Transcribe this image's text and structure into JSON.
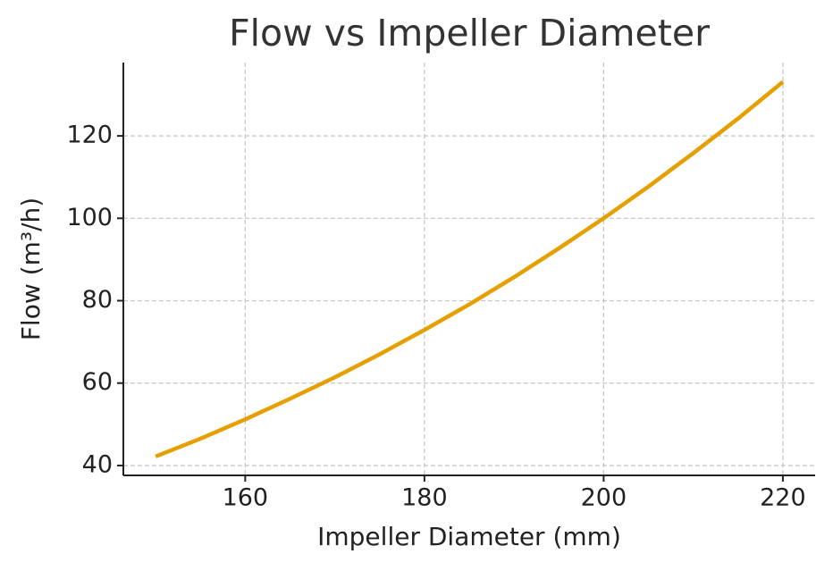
{
  "chart_data": {
    "type": "line",
    "title": "Flow vs Impeller Diameter",
    "x_label": "Impeller Diameter (mm)",
    "y_label": "Flow (m³/h)",
    "x": [
      150,
      155,
      160,
      165,
      170,
      175,
      180,
      185,
      190,
      195,
      200,
      205,
      210,
      215,
      220
    ],
    "series": [
      {
        "name": "Flow",
        "color": "#e69f00",
        "values": [
          42.2,
          46.5,
          51.2,
          56.2,
          61.4,
          67.0,
          72.9,
          79.1,
          85.7,
          92.7,
          100,
          107.7,
          115.8,
          124.2,
          133.1
        ]
      }
    ],
    "xlim": [
      146.4,
      223.6
    ],
    "xticks": [
      160,
      180,
      200,
      220
    ],
    "ylim": [
      37.6,
      137.8
    ],
    "yticks": [
      40,
      60,
      80,
      100,
      120
    ],
    "grid": true
  }
}
